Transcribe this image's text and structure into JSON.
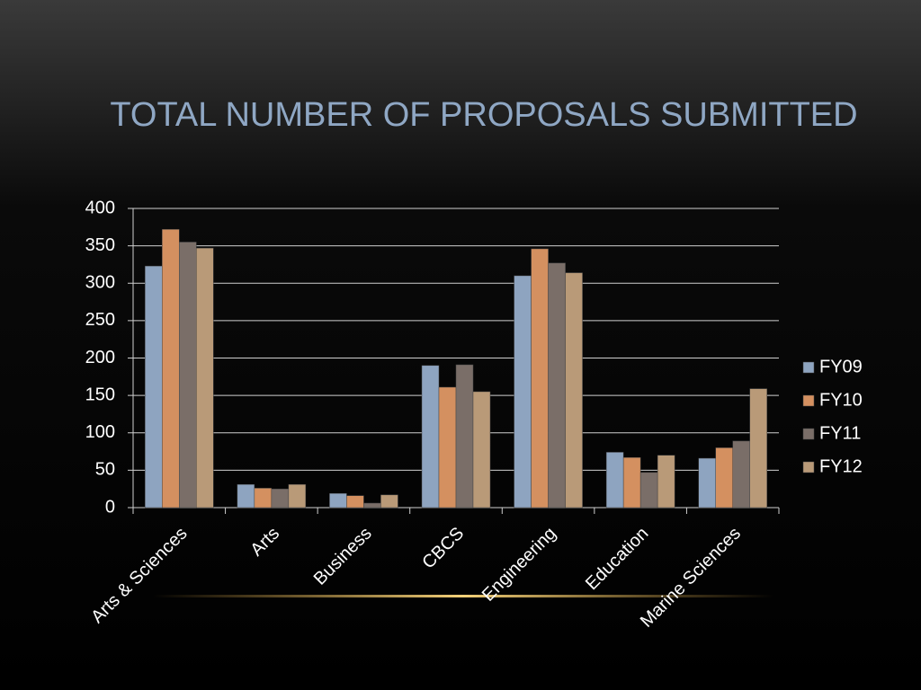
{
  "chart_data": {
    "type": "bar",
    "title": "TOTAL NUMBER OF PROPOSALS SUBMITTED",
    "categories": [
      "Arts & Sciences",
      "Arts",
      "Business",
      "CBCS",
      "Engineering",
      "Education",
      "Marine Sciences"
    ],
    "series": [
      {
        "name": "FY09",
        "color": "#8ea4c0",
        "values": [
          323,
          31,
          19,
          190,
          310,
          74,
          66
        ]
      },
      {
        "name": "FY10",
        "color": "#d49060",
        "values": [
          372,
          26,
          16,
          161,
          346,
          67,
          80
        ]
      },
      {
        "name": "FY11",
        "color": "#7a6e68",
        "values": [
          355,
          25,
          6,
          191,
          327,
          47,
          89
        ]
      },
      {
        "name": "FY12",
        "color": "#b99a78",
        "values": [
          347,
          31,
          17,
          155,
          314,
          70,
          159
        ]
      }
    ],
    "ylim": [
      0,
      400
    ],
    "yticks": [
      0,
      50,
      100,
      150,
      200,
      250,
      300,
      350,
      400
    ],
    "grid": true,
    "legend": "right"
  }
}
